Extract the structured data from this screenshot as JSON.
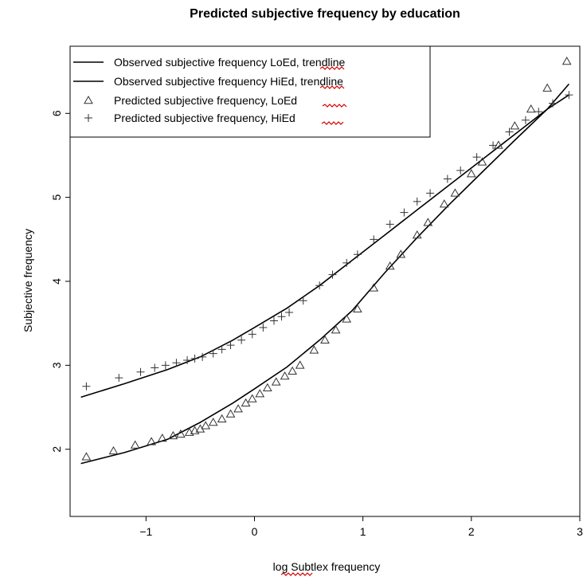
{
  "chart_data": {
    "type": "line",
    "title": "Predicted subjective frequency by education",
    "xlabel": "log Subtlex frequency",
    "ylabel": "Subjective frequency",
    "xlim": [
      -1.7,
      3.0
    ],
    "ylim": [
      1.2,
      6.8
    ],
    "xticks": [
      -1,
      0,
      1,
      2,
      3
    ],
    "xtick_labels": [
      "−1",
      "0",
      "1",
      "2",
      "3"
    ],
    "yticks": [
      2,
      3,
      4,
      5,
      6
    ],
    "ytick_labels": [
      "2",
      "3",
      "4",
      "5",
      "6"
    ],
    "grid": false,
    "legend_position": "top-left",
    "series": [
      {
        "name": "Observed subjective frequency LoEd, trendline",
        "style": "line",
        "x": [
          -1.6,
          -1.2,
          -0.8,
          -0.5,
          -0.2,
          0.0,
          0.3,
          0.6,
          0.9,
          1.2,
          1.5,
          1.8,
          2.1,
          2.4,
          2.7,
          2.9
        ],
        "values": [
          1.83,
          1.96,
          2.12,
          2.32,
          2.55,
          2.72,
          2.98,
          3.3,
          3.65,
          4.1,
          4.52,
          4.92,
          5.3,
          5.68,
          6.05,
          6.35
        ]
      },
      {
        "name": "Observed subjective frequency HiEd, trendline",
        "style": "line",
        "x": [
          -1.6,
          -1.2,
          -0.8,
          -0.5,
          -0.2,
          0.0,
          0.3,
          0.6,
          0.9,
          1.2,
          1.5,
          1.8,
          2.1,
          2.4,
          2.7,
          2.9
        ],
        "values": [
          2.62,
          2.78,
          2.95,
          3.1,
          3.3,
          3.45,
          3.68,
          3.95,
          4.25,
          4.55,
          4.85,
          5.15,
          5.45,
          5.75,
          6.05,
          6.22
        ]
      },
      {
        "name": "Predicted subjective frequency, LoEd",
        "style": "triangle",
        "x": [
          -1.55,
          -1.3,
          -1.1,
          -0.95,
          -0.85,
          -0.75,
          -0.68,
          -0.6,
          -0.55,
          -0.5,
          -0.45,
          -0.38,
          -0.3,
          -0.22,
          -0.15,
          -0.08,
          -0.02,
          0.05,
          0.12,
          0.2,
          0.28,
          0.35,
          0.42,
          0.55,
          0.65,
          0.75,
          0.85,
          0.95,
          1.1,
          1.25,
          1.35,
          1.5,
          1.6,
          1.75,
          1.85,
          2.0,
          2.1,
          2.25,
          2.4,
          2.55,
          2.7,
          2.88
        ],
        "values": [
          1.91,
          1.98,
          2.05,
          2.09,
          2.13,
          2.16,
          2.18,
          2.2,
          2.22,
          2.24,
          2.28,
          2.32,
          2.36,
          2.42,
          2.48,
          2.55,
          2.6,
          2.66,
          2.73,
          2.8,
          2.87,
          2.93,
          3.0,
          3.18,
          3.3,
          3.42,
          3.55,
          3.67,
          3.92,
          4.18,
          4.32,
          4.55,
          4.7,
          4.92,
          5.05,
          5.28,
          5.42,
          5.62,
          5.85,
          6.05,
          6.3,
          6.62
        ]
      },
      {
        "name": "Predicted subjective frequency, HiEd",
        "style": "plus",
        "x": [
          -1.55,
          -1.25,
          -1.05,
          -0.92,
          -0.82,
          -0.72,
          -0.62,
          -0.55,
          -0.48,
          -0.38,
          -0.3,
          -0.22,
          -0.12,
          -0.02,
          0.08,
          0.18,
          0.25,
          0.32,
          0.45,
          0.6,
          0.72,
          0.85,
          0.95,
          1.1,
          1.25,
          1.38,
          1.5,
          1.62,
          1.78,
          1.9,
          2.05,
          2.2,
          2.35,
          2.5,
          2.62,
          2.75,
          2.9
        ],
        "values": [
          2.75,
          2.85,
          2.92,
          2.97,
          3.0,
          3.03,
          3.06,
          3.08,
          3.1,
          3.14,
          3.19,
          3.24,
          3.3,
          3.37,
          3.45,
          3.53,
          3.58,
          3.63,
          3.77,
          3.95,
          4.08,
          4.22,
          4.32,
          4.5,
          4.68,
          4.82,
          4.95,
          5.05,
          5.22,
          5.32,
          5.48,
          5.62,
          5.78,
          5.92,
          6.02,
          6.12,
          6.22
        ]
      }
    ],
    "colors": {
      "lines": "#000000",
      "markers": "#333333",
      "spellcheck_underline": "#d40000"
    }
  }
}
